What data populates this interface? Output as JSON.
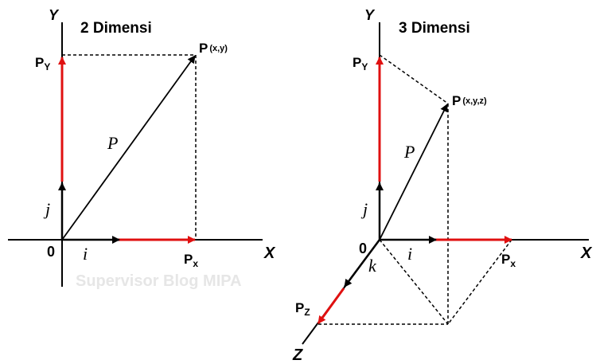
{
  "left": {
    "title": "2 Dimensi",
    "axis_y": "Y",
    "axis_x": "X",
    "origin": "0",
    "vec_label": "P",
    "unit_i": "i",
    "unit_j": "j",
    "point": "P",
    "point_sub": "(x,y)",
    "px": "P",
    "px_sub": "x",
    "py": "P",
    "py_sub": "Y"
  },
  "right": {
    "title": "3 Dimensi",
    "axis_y": "Y",
    "axis_x": "X",
    "axis_z": "Z",
    "origin": "0",
    "vec_label": "P",
    "unit_i": "i",
    "unit_j": "j",
    "unit_k": "k",
    "point": "P",
    "point_sub": "(x,y,z)",
    "px": "P",
    "px_sub": "x",
    "py": "P",
    "py_sub": "Y",
    "pz": "P",
    "pz_sub": "Z"
  },
  "watermark": "Supervisor Blog MIPA",
  "colors": {
    "red": "#e01010",
    "black": "#000000",
    "watermark": "#e6e6e6"
  }
}
